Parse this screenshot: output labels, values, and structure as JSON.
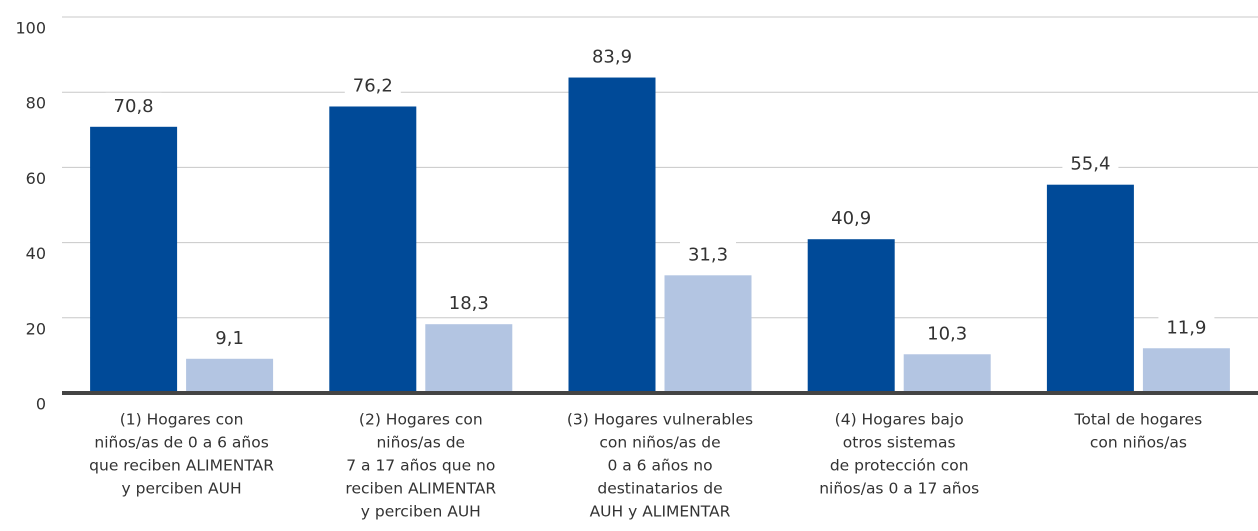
{
  "chart_data": {
    "type": "bar",
    "categories": [
      [
        "(1) Hogares con",
        "niños/as de 0 a 6 años",
        "que reciben ALIMENTAR",
        "y perciben AUH"
      ],
      [
        "(2) Hogares con",
        "niños/as de",
        "7 a 17 años que no",
        "reciben ALIMENTAR",
        "y perciben AUH"
      ],
      [
        "(3) Hogares vulnerables",
        "con niños/as de",
        "0 a 6 años no",
        "destinatarios de",
        "AUH y ALIMENTAR"
      ],
      [
        "(4) Hogares bajo",
        "otros sistemas",
        "de protección con",
        "niños/as 0 a 17 años"
      ],
      [
        "Total de hogares",
        "con niños/as"
      ]
    ],
    "series": [
      {
        "color": "#004a98",
        "values": [
          70.8,
          76.2,
          83.9,
          40.9,
          55.4
        ],
        "value_labels": [
          "70,8",
          "76,2",
          "83,9",
          "40,9",
          "55,4"
        ]
      },
      {
        "color": "#b3c5e2",
        "values": [
          9.1,
          18.3,
          31.3,
          10.3,
          11.9
        ],
        "value_labels": [
          "9,1",
          "18,3",
          "31,3",
          "10,3",
          "11,9"
        ]
      }
    ],
    "ylim": [
      0,
      100
    ],
    "yticks": [
      0,
      20,
      40,
      60,
      80,
      100
    ],
    "grid": true
  }
}
